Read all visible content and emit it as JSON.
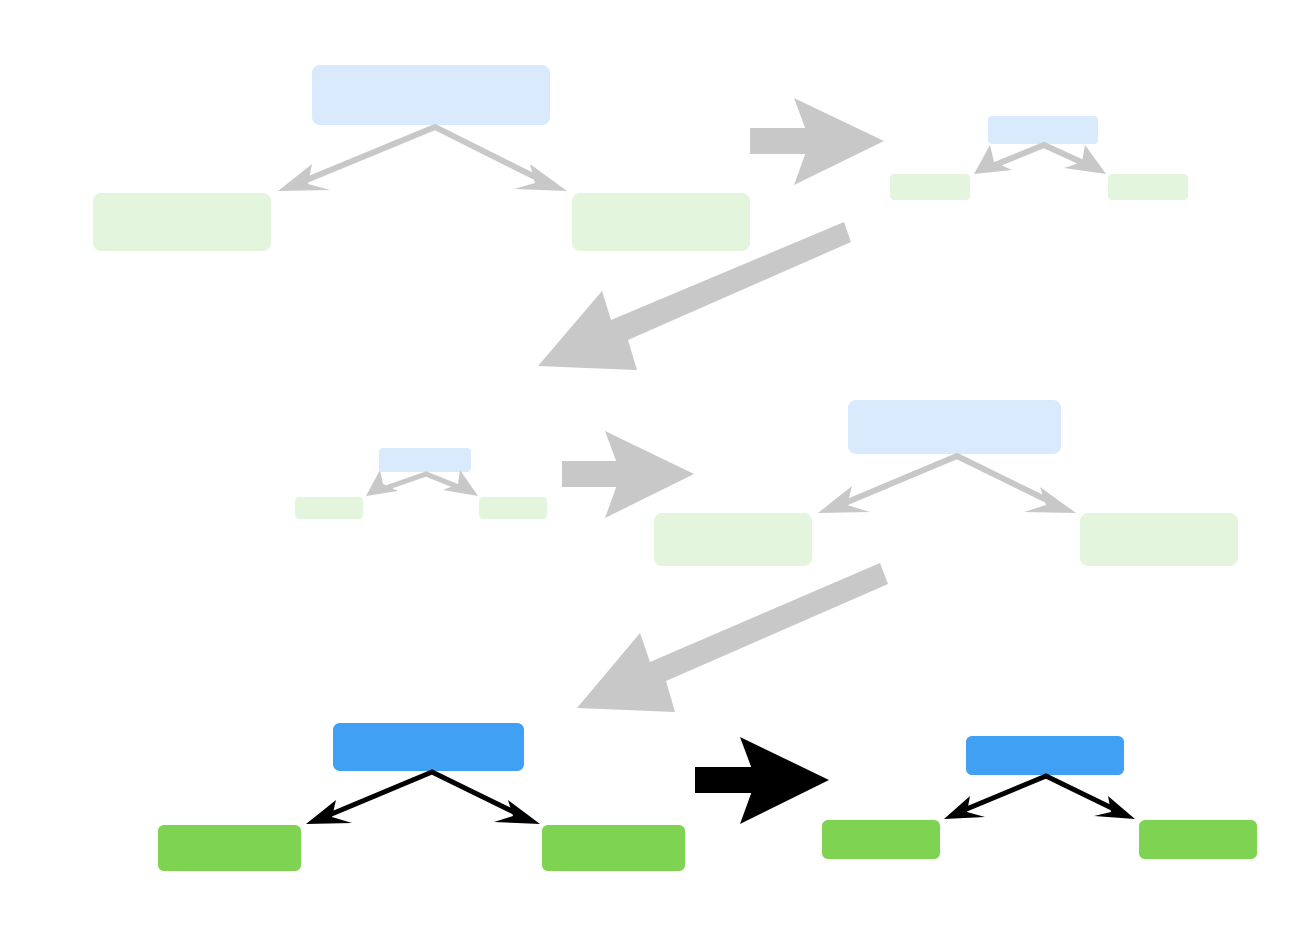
{
  "colors": {
    "parent": "#3fa0f4",
    "child": "#7ed352",
    "parent_faded": "#d8eafb",
    "child_faded": "#e3f5dc",
    "arrow_faded": "#c8c8c8",
    "arrow_active": "#000000",
    "background": "#ffffff"
  },
  "diagram": {
    "description_icons": [
      "tree-node-icon",
      "split-arrow-icon",
      "flow-arrow-icon"
    ],
    "stages": [
      {
        "id": "stage-1",
        "state": "faded",
        "size": "large"
      },
      {
        "id": "stage-2",
        "state": "faded",
        "size": "small"
      },
      {
        "id": "stage-3",
        "state": "faded",
        "size": "small"
      },
      {
        "id": "stage-4",
        "state": "faded",
        "size": "large"
      },
      {
        "id": "stage-5",
        "state": "active",
        "size": "large"
      },
      {
        "id": "stage-6",
        "state": "active",
        "size": "medium"
      }
    ],
    "transitions": [
      {
        "from": "stage-1",
        "to": "stage-2",
        "state": "faded"
      },
      {
        "from": "stage-2",
        "to": "stage-3",
        "state": "faded"
      },
      {
        "from": "stage-3",
        "to": "stage-4",
        "state": "faded"
      },
      {
        "from": "stage-4",
        "to": "stage-5",
        "state": "faded"
      },
      {
        "from": "stage-5",
        "to": "stage-6",
        "state": "active"
      }
    ]
  }
}
